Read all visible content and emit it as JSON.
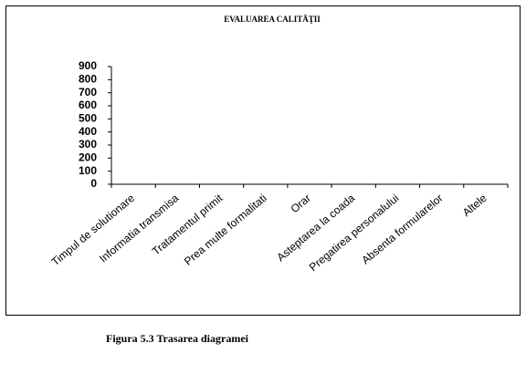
{
  "chart_data": {
    "type": "bar",
    "title": "EVALUAREA CALITĂŢII",
    "categories": [
      "Timpul de solutionare",
      "Informatia transmisa",
      "Tratamentul primit",
      "Prea multe formalitati",
      "Orar",
      "Asteptarea la coada",
      "Pregatirea personalului",
      "Absenta formularelor",
      "Altele"
    ],
    "ylim": [
      0,
      900
    ],
    "yticks": [
      0,
      100,
      200,
      300,
      400,
      500,
      600,
      700,
      800,
      900
    ],
    "caption": "Figura 5.3 Trasarea diagramei"
  }
}
